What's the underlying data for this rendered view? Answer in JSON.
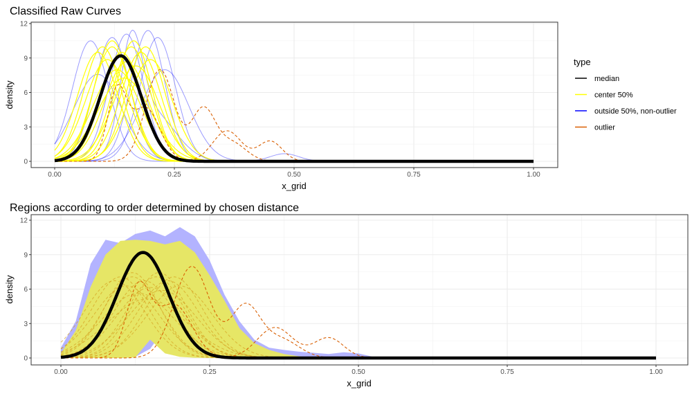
{
  "chart_data": [
    {
      "type": "line",
      "title": "Classified Raw Curves",
      "xlabel": "x_grid",
      "ylabel": "density",
      "xlim": [
        0,
        1
      ],
      "ylim": [
        0,
        12
      ],
      "x_ticks": [
        "0.00",
        "0.25",
        "0.50",
        "0.75",
        "1.00"
      ],
      "y_ticks": [
        "0",
        "3",
        "6",
        "9",
        "12"
      ],
      "grid": true,
      "legend": {
        "title": "type",
        "placement": "right",
        "entries": [
          {
            "label": "median",
            "color": "#000000"
          },
          {
            "label": "center 50%",
            "color": "#ffff00"
          },
          {
            "label": "outside 50%, non-outlier",
            "color": "#0000ff"
          },
          {
            "label": "outlier",
            "color": "#d95f02"
          }
        ]
      },
      "series": {
        "median": {
          "components": [
            {
              "mean": 0.138,
              "sd": 0.0434,
              "weight": 1
            }
          ]
        },
        "center_50": [
          {
            "components": [
              {
                "mean": 0.1,
                "sd": 0.04,
                "weight": 1
              }
            ]
          },
          {
            "components": [
              {
                "mean": 0.12,
                "sd": 0.04,
                "weight": 1
              }
            ]
          },
          {
            "components": [
              {
                "mean": 0.14,
                "sd": 0.042,
                "weight": 1
              }
            ]
          },
          {
            "components": [
              {
                "mean": 0.16,
                "sd": 0.04,
                "weight": 1
              }
            ]
          },
          {
            "components": [
              {
                "mean": 0.18,
                "sd": 0.042,
                "weight": 1
              }
            ]
          },
          {
            "components": [
              {
                "mean": 0.11,
                "sd": 0.045,
                "weight": 1
              }
            ]
          },
          {
            "components": [
              {
                "mean": 0.13,
                "sd": 0.05,
                "weight": 1
              }
            ]
          },
          {
            "components": [
              {
                "mean": 0.15,
                "sd": 0.046,
                "weight": 1
              }
            ]
          },
          {
            "components": [
              {
                "mean": 0.17,
                "sd": 0.048,
                "weight": 1
              }
            ]
          },
          {
            "components": [
              {
                "mean": 0.19,
                "sd": 0.04,
                "weight": 1
              }
            ]
          },
          {
            "components": [
              {
                "mean": 0.2,
                "sd": 0.045,
                "weight": 1
              }
            ]
          },
          {
            "components": [
              {
                "mean": 0.12,
                "sd": 0.038,
                "weight": 1
              }
            ]
          },
          {
            "components": [
              {
                "mean": 0.09,
                "sd": 0.042,
                "weight": 1
              }
            ]
          },
          {
            "components": [
              {
                "mean": 0.165,
                "sd": 0.038,
                "weight": 1
              }
            ]
          },
          {
            "components": [
              {
                "mean": 0.145,
                "sd": 0.055,
                "weight": 1
              }
            ]
          }
        ],
        "outside_50": [
          {
            "components": [
              {
                "mean": 0.075,
                "sd": 0.038,
                "weight": 1
              }
            ]
          },
          {
            "components": [
              {
                "mean": 0.195,
                "sd": 0.035,
                "weight": 1
              }
            ]
          },
          {
            "components": [
              {
                "mean": 0.215,
                "sd": 0.037,
                "weight": 1
              }
            ]
          },
          {
            "components": [
              {
                "mean": 0.15,
                "sd": 0.036,
                "weight": 1
              }
            ]
          },
          {
            "components": [
              {
                "mean": 0.12,
                "sd": 0.037,
                "weight": 1
              }
            ]
          },
          {
            "components": [
              {
                "mean": 0.16,
                "sd": 0.022,
                "weight": 0.45
              },
              {
                "mean": 0.2,
                "sd": 0.05,
                "weight": 0.55
              }
            ]
          },
          {
            "components": [
              {
                "mean": 0.09,
                "sd": 0.05,
                "weight": 0.95
              },
              {
                "mean": 0.48,
                "sd": 0.03,
                "weight": 0.05
              }
            ]
          },
          {
            "components": [
              {
                "mean": 0.23,
                "sd": 0.05,
                "weight": 1
              }
            ]
          }
        ],
        "outlier": [
          {
            "components": [
              {
                "mean": 0.22,
                "sd": 0.03,
                "weight": 0.6
              },
              {
                "mean": 0.31,
                "sd": 0.025,
                "weight": 0.28
              },
              {
                "mean": 0.37,
                "sd": 0.03,
                "weight": 0.12
              }
            ]
          },
          {
            "components": [
              {
                "mean": 0.13,
                "sd": 0.02,
                "weight": 0.3
              },
              {
                "mean": 0.19,
                "sd": 0.03,
                "weight": 0.35
              },
              {
                "mean": 0.36,
                "sd": 0.03,
                "weight": 0.2
              },
              {
                "mean": 0.45,
                "sd": 0.025,
                "weight": 0.11
              }
            ]
          }
        ]
      }
    },
    {
      "type": "area",
      "title": "Regions according to order determined by chosen distance",
      "xlabel": "x_grid",
      "ylabel": "density",
      "xlim": [
        0,
        1
      ],
      "ylim": [
        0,
        12
      ],
      "x_ticks": [
        "0.00",
        "0.25",
        "0.50",
        "0.75",
        "1.00"
      ],
      "y_ticks": [
        "0",
        "3",
        "6",
        "9",
        "12"
      ],
      "grid": true,
      "x": [
        0,
        0.025,
        0.05,
        0.075,
        0.1,
        0.125,
        0.15,
        0.175,
        0.2,
        0.225,
        0.25,
        0.275,
        0.3,
        0.325,
        0.35,
        0.375,
        0.4,
        0.425,
        0.45,
        0.475,
        0.5,
        0.525,
        0.55,
        1
      ],
      "outer_band": {
        "color": "#b3b3ff",
        "upper": [
          0.9,
          3.2,
          8.2,
          10.3,
          10.0,
          10.8,
          11.1,
          10.6,
          11.4,
          10.6,
          8.5,
          5.5,
          3.2,
          1.6,
          0.9,
          0.7,
          0.55,
          0.45,
          0.35,
          0.5,
          0.4,
          0.1,
          0,
          0
        ],
        "lower": [
          0,
          0,
          0,
          0,
          0,
          0.1,
          0.8,
          2.6,
          1.0,
          0.45,
          0.25,
          0.1,
          0.05,
          0,
          0,
          0,
          0,
          0,
          0,
          0,
          0,
          0,
          0,
          0
        ]
      },
      "inner_band": {
        "color": "#e6e666",
        "upper": [
          0.4,
          2.4,
          6.2,
          9.0,
          10.2,
          10.3,
          10.2,
          9.9,
          10.2,
          9.2,
          7.2,
          5.0,
          2.6,
          1.3,
          0.7,
          0.35,
          0.15,
          0.05,
          0,
          0,
          0,
          0,
          0,
          0
        ],
        "lower": [
          0,
          0,
          0,
          0,
          0,
          0.05,
          1.6,
          0.4,
          0.1,
          0.02,
          0,
          0,
          0,
          0,
          0,
          0,
          0,
          0,
          0,
          0,
          0,
          0,
          0,
          0
        ]
      }
    }
  ]
}
